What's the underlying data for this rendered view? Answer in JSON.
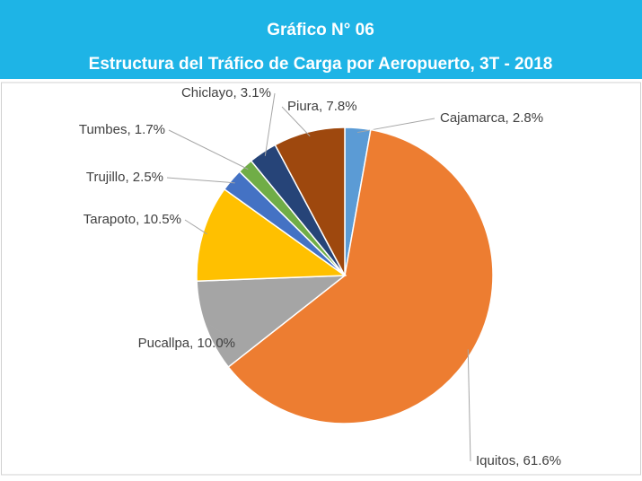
{
  "chart_data": {
    "type": "pie",
    "title": "Gráfico N° 06",
    "subtitle": "Estructura del Tráfico de Carga por Aeropuerto, 3T - 2018",
    "categories": [
      "Cajamarca",
      "Iquitos",
      "Pucallpa",
      "Tarapoto",
      "Trujillo",
      "Tumbes",
      "Chiclayo",
      "Piura"
    ],
    "values": [
      2.8,
      61.6,
      10.0,
      10.5,
      2.5,
      1.7,
      3.1,
      7.8
    ],
    "value_labels": [
      "Cajamarca, 2.8%",
      "Iquitos, 61.6%",
      "Pucallpa, 10.0%",
      "Tarapoto, 10.5%",
      "Trujillo, 2.5%",
      "Tumbes, 1.7%",
      "Chiclayo, 3.1%",
      "Piura, 7.8%"
    ],
    "colors": [
      "#5b9bd5",
      "#ed7d31",
      "#a5a5a5",
      "#ffc000",
      "#4472c4",
      "#70ad47",
      "#264478",
      "#9e480e"
    ]
  }
}
